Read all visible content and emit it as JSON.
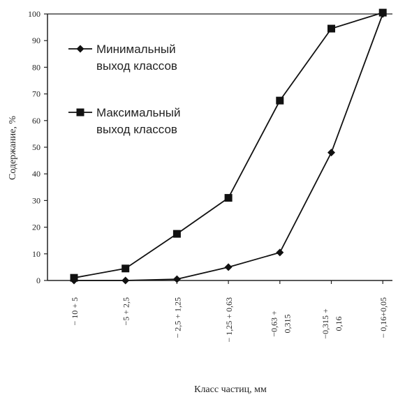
{
  "chart_data": {
    "type": "line",
    "xlabel": "Класс частиц, мм",
    "ylabel": "Содержание, %",
    "ylim": [
      0,
      100
    ],
    "yticks": [
      0,
      10,
      20,
      30,
      40,
      50,
      60,
      70,
      80,
      90,
      100
    ],
    "grid": false,
    "legend_position": "top-left",
    "categories": [
      [
        "− 10 + 5"
      ],
      [
        "−5 + 2,5"
      ],
      [
        "− 2,5 + 1,25"
      ],
      [
        "− 1,25 + 0,63"
      ],
      [
        "−0,63 +",
        "0,315"
      ],
      [
        "−0,315 +",
        "0,16"
      ],
      [
        "− 0,16+0,05"
      ]
    ],
    "series": [
      {
        "name": [
          "Минимальный",
          "выход классов"
        ],
        "marker": "diamond",
        "values": [
          0,
          0,
          0.5,
          5,
          10.5,
          48,
          100
        ]
      },
      {
        "name": [
          "Максимальный",
          "выход классов"
        ],
        "marker": "square",
        "values": [
          1,
          4.5,
          17.5,
          31,
          67.5,
          94.5,
          100.5
        ]
      }
    ]
  }
}
